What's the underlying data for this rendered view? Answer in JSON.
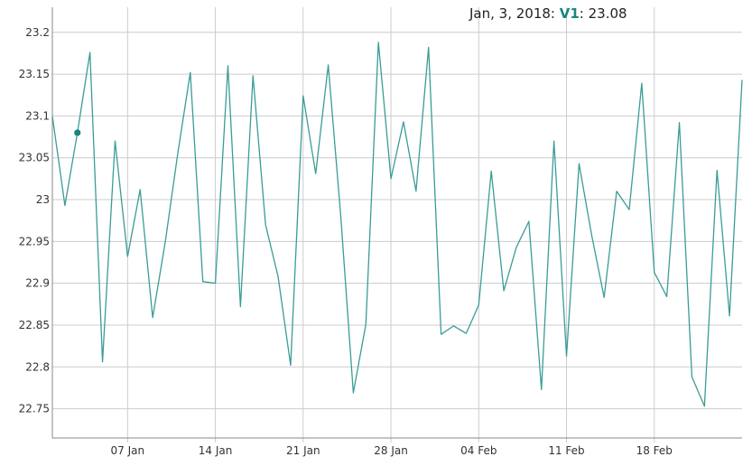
{
  "legend": {
    "date": "Jan, 3, 2018",
    "series_name": "V1",
    "separator": ": ",
    "value": "23.08"
  },
  "colors": {
    "line": "#3a9c96",
    "marker": "#168783",
    "grid": "#cccccc",
    "axis": "#888888"
  },
  "chart_data": {
    "type": "line",
    "title": "",
    "xlabel": "",
    "ylabel": "",
    "x_start": "2018-01-01",
    "x_ticks": [
      "07 Jan",
      "14 Jan",
      "21 Jan",
      "28 Jan",
      "04 Feb",
      "11 Feb",
      "18 Feb"
    ],
    "y_ticks": [
      "23.2",
      "23.15",
      "23.1",
      "23.05",
      "23",
      "22.95",
      "22.9",
      "22.85",
      "22.8",
      "22.75"
    ],
    "ylim": [
      22.715,
      23.23
    ],
    "grid": true,
    "highlight": {
      "date": "2018-01-03",
      "value": 23.08
    },
    "series": [
      {
        "name": "V1",
        "x": [
          "2018-01-01",
          "2018-01-02",
          "2018-01-03",
          "2018-01-04",
          "2018-01-05",
          "2018-01-06",
          "2018-01-07",
          "2018-01-08",
          "2018-01-09",
          "2018-01-10",
          "2018-01-11",
          "2018-01-12",
          "2018-01-13",
          "2018-01-14",
          "2018-01-15",
          "2018-01-16",
          "2018-01-17",
          "2018-01-18",
          "2018-01-19",
          "2018-01-20",
          "2018-01-21",
          "2018-01-22",
          "2018-01-23",
          "2018-01-24",
          "2018-01-25",
          "2018-01-26",
          "2018-01-27",
          "2018-01-28",
          "2018-01-29",
          "2018-01-30",
          "2018-01-31",
          "2018-02-01",
          "2018-02-02",
          "2018-02-03",
          "2018-02-04",
          "2018-02-05",
          "2018-02-06",
          "2018-02-07",
          "2018-02-08",
          "2018-02-09",
          "2018-02-10",
          "2018-02-11",
          "2018-02-12",
          "2018-02-13",
          "2018-02-14",
          "2018-02-15",
          "2018-02-16",
          "2018-02-17",
          "2018-02-18",
          "2018-02-19",
          "2018-02-20",
          "2018-02-21",
          "2018-02-22",
          "2018-02-23",
          "2018-02-24",
          "2018-02-25"
        ],
        "values": [
          23.1,
          22.993,
          23.08,
          23.176,
          22.806,
          23.07,
          22.932,
          23.012,
          22.859,
          22.949,
          23.055,
          23.152,
          22.902,
          22.9,
          23.16,
          22.872,
          23.148,
          22.97,
          22.908,
          22.802,
          23.124,
          23.031,
          23.161,
          22.98,
          22.769,
          22.851,
          23.188,
          23.025,
          23.093,
          23.01,
          23.182,
          22.839,
          22.849,
          22.84,
          22.874,
          23.034,
          22.891,
          22.943,
          22.974,
          22.773,
          23.07,
          22.813,
          23.043,
          22.958,
          22.883,
          23.01,
          22.988,
          23.139,
          22.913,
          22.884,
          23.092,
          22.788,
          22.753,
          23.035,
          22.861,
          23.143
        ]
      }
    ]
  }
}
